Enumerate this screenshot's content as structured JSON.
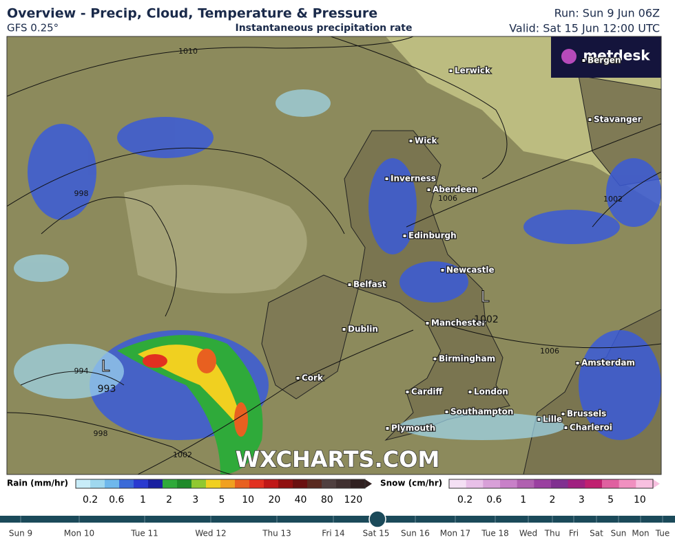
{
  "header": {
    "title": "Overview - Precip, Cloud, Temperature & Pressure",
    "model": "GFS 0.25°",
    "subtitle": "Instantaneous precipitation rate",
    "run": "Run: Sun 9 Jun 06Z",
    "valid": "Valid: Sat 15 Jun 12:00 UTC"
  },
  "map": {
    "brand": "metdesk",
    "watermark": "WXCHARTS.COM",
    "cities": [
      "Lerwick",
      "Bergen",
      "Stavanger",
      "Wick",
      "Inverness",
      "Aberdeen",
      "Edinburgh",
      "Newcastle",
      "Belfast",
      "Dublin",
      "Manchester",
      "Birmingham",
      "Amsterdam",
      "Cork",
      "Cardiff",
      "London",
      "Southampton",
      "Brussels",
      "Lille",
      "Charleroi",
      "Plymouth"
    ],
    "isobar_labels": [
      "1010",
      "998",
      "1006",
      "1002",
      "994",
      "998",
      "1002",
      "1006"
    ],
    "lows": [
      {
        "symbol": "L",
        "pressure": "993"
      },
      {
        "symbol": "L",
        "pressure": "1002"
      }
    ]
  },
  "legend": {
    "rain": {
      "label": "Rain (mm/hr)",
      "ticks": [
        "0.2",
        "0.6",
        "1",
        "2",
        "3",
        "5",
        "10",
        "20",
        "40",
        "80",
        "120"
      ]
    },
    "snow": {
      "label": "Snow (cm/hr)",
      "ticks": [
        "0.2",
        "0.6",
        "1",
        "2",
        "3",
        "5",
        "10"
      ]
    }
  },
  "timeline": {
    "days": [
      "Sun 9",
      "Mon 10",
      "Tue 11",
      "Wed 12",
      "Thu 13",
      "Fri 14",
      "Sat 15",
      "Sun 16",
      "Mon 17",
      "Tue 18",
      "Wed",
      "Thu",
      "Fri",
      "Sat",
      "Sun",
      "Mon",
      "Tue"
    ]
  }
}
